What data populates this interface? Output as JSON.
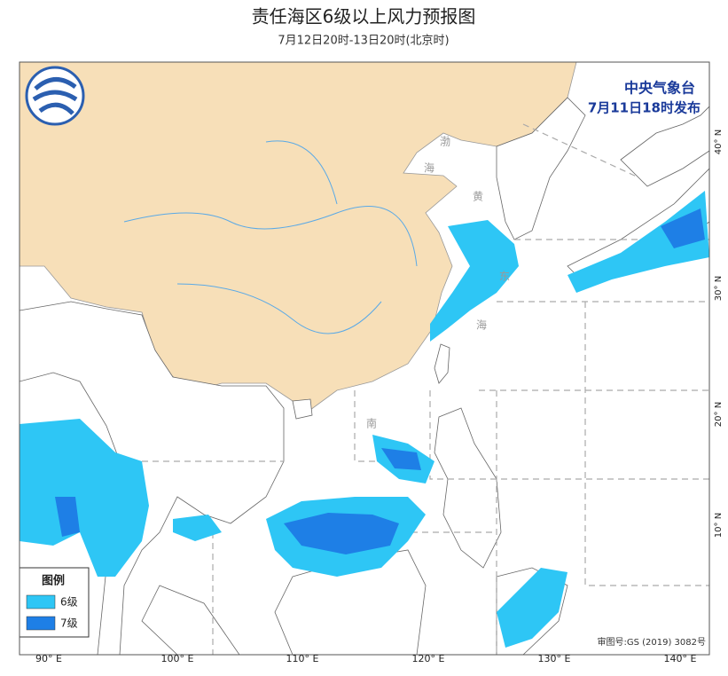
{
  "header": {
    "title": "责任海区6级以上风力预报图",
    "subtitle": "7月12日20时-13日20时(北京时)"
  },
  "issuer": {
    "agency": "中央气象台",
    "time": "7月11日18时发布"
  },
  "legend": {
    "title": "图例",
    "items": [
      {
        "label": "6级",
        "color": "#2ec6f5"
      },
      {
        "label": "7级",
        "color": "#1e7fe6"
      }
    ]
  },
  "longitude_labels": [
    "90° E",
    "100° E",
    "110° E",
    "120° E",
    "130° E",
    "140° E"
  ],
  "latitude_labels": [
    "40° N",
    "30° N",
    "20° N",
    "10° N"
  ],
  "sea_labels": [
    "渤",
    "海",
    "黄",
    "东",
    "海",
    "南"
  ],
  "approval": "审图号:GS (2019) 3082号"
}
